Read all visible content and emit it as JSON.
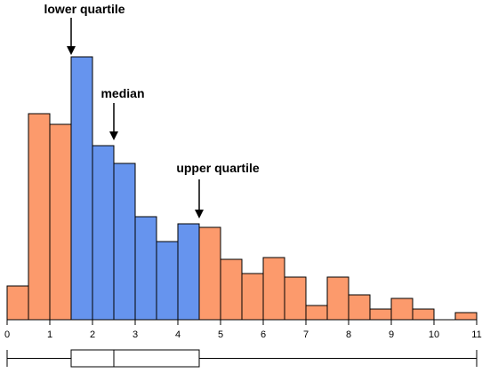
{
  "chart_data": {
    "type": "bar",
    "title": "",
    "xlabel": "",
    "ylabel": "",
    "bin_width": 0.5,
    "bin_starts": [
      0,
      0.5,
      1,
      1.5,
      2,
      2.5,
      3,
      3.5,
      4,
      4.5,
      5,
      5.5,
      6,
      6.5,
      7,
      7.5,
      8,
      8.5,
      9,
      9.5,
      10,
      10.5
    ],
    "values": [
      9.5,
      58,
      55,
      74,
      49,
      44,
      29,
      22,
      27,
      26,
      17,
      13,
      17.5,
      12,
      4,
      12,
      7,
      3,
      6,
      3,
      0,
      2
    ],
    "xlim": [
      0,
      11
    ],
    "ylim": [
      0,
      90
    ],
    "x_ticks": [
      "0",
      "1",
      "2",
      "3",
      "4",
      "5",
      "6",
      "7",
      "8",
      "9",
      "10",
      "11"
    ],
    "colors": {
      "inside_quartiles": "#6694ee",
      "outside_quartiles": "#fc9a6c",
      "outline": "#000000"
    },
    "box_plot": {
      "min": 0,
      "lower_quartile": 1.5,
      "median": 2.5,
      "upper_quartile": 4.5,
      "max": 11
    },
    "annotations": [
      {
        "key": "lower_quartile",
        "label": "lower quartile",
        "x": 1.5
      },
      {
        "key": "median",
        "label": "median",
        "x": 2.5
      },
      {
        "key": "upper_quartile",
        "label": "upper quartile",
        "x": 4.5
      }
    ]
  }
}
